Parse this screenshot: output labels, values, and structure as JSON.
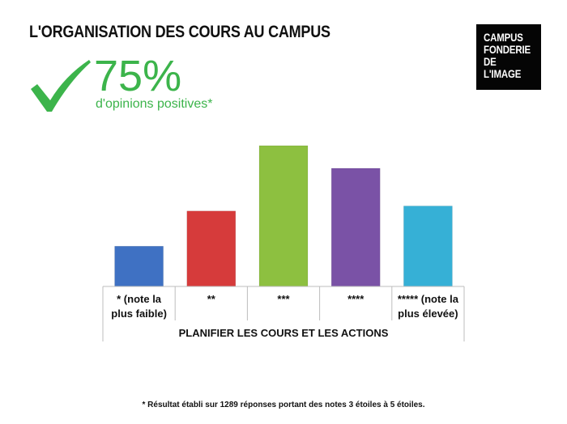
{
  "header": {
    "title": "L'ORGANISATION DES COURS AU CAMPUS"
  },
  "logo": {
    "lines": [
      "CAMPUS",
      "FONDERIE",
      "DE",
      "L'IMAGE"
    ]
  },
  "stat": {
    "value": "75%",
    "caption": "d'opinions positives*",
    "icon": "checkmark-icon",
    "color": "#3cb44b"
  },
  "chart_data": {
    "type": "bar",
    "categories": [
      [
        "* (note la",
        "plus faible)"
      ],
      [
        "**"
      ],
      [
        "***"
      ],
      [
        "****"
      ],
      [
        "***** (note la",
        "plus élevée)"
      ]
    ],
    "values": [
      8,
      15,
      28,
      23.5,
      16
    ],
    "colors": [
      "#3f71c3",
      "#d63b3b",
      "#8dc040",
      "#7a52a6",
      "#36b0d6"
    ],
    "xlabel": "PLANIFIER LES COURS ET LES ACTIONS",
    "ylabel": "",
    "ylim": [
      0,
      28
    ]
  },
  "footnote": "* Résultat établi sur 1289 réponses portant des notes 3 étoiles à 5 étoiles."
}
